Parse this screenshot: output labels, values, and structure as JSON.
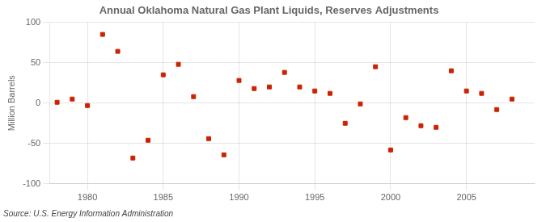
{
  "chart_data": {
    "type": "scatter",
    "title": "Annual Oklahoma Natural Gas Plant Liquids, Reserves Adjustments",
    "ylabel": "Million Barrels",
    "annotation": "Source: U.S. Energy Information Administration",
    "x": [
      1978,
      1979,
      1980,
      1981,
      1982,
      1983,
      1984,
      1985,
      1986,
      1987,
      1988,
      1989,
      1990,
      1991,
      1992,
      1993,
      1994,
      1995,
      1996,
      1997,
      1998,
      1999,
      2000,
      2001,
      2002,
      2003,
      2004,
      2005,
      2006,
      2007,
      2008
    ],
    "values": [
      1,
      5,
      -3,
      85,
      64,
      -68,
      -46,
      35,
      48,
      8,
      -44,
      -64,
      28,
      18,
      20,
      38,
      20,
      15,
      12,
      -25,
      -1,
      45,
      -58,
      -18,
      -28,
      -30,
      40,
      15,
      12,
      -8,
      5
    ],
    "color": "#cc2200",
    "marker": "square",
    "xlim": [
      1977.5,
      2009.5
    ],
    "ylim": [
      -100,
      100
    ],
    "xticks": [
      1980,
      1985,
      1990,
      1995,
      2000,
      2005
    ],
    "yticks": [
      -100,
      -50,
      0,
      50,
      100
    ],
    "grid": true
  }
}
